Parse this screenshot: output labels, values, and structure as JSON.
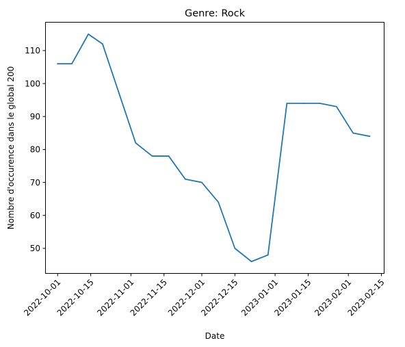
{
  "chart_data": {
    "type": "line",
    "title": "Genre:  Rock",
    "xlabel": "Date",
    "ylabel": "Nombre d'occurence dans le global 200",
    "grid": false,
    "legend": "none",
    "xlim": [
      "2022-09-26",
      "2023-02-16"
    ],
    "ylim": [
      42.5,
      118.5
    ],
    "x_ticks": [
      "2022-10-01",
      "2022-10-15",
      "2022-11-01",
      "2022-11-15",
      "2022-12-01",
      "2022-12-15",
      "2023-01-01",
      "2023-01-15",
      "2023-02-01",
      "2023-02-15"
    ],
    "y_ticks": [
      50,
      60,
      70,
      80,
      90,
      100,
      110
    ],
    "series": [
      {
        "color": "#1f77b4",
        "points": [
          {
            "x": "2022-10-01",
            "y": 106
          },
          {
            "x": "2022-10-07",
            "y": 106
          },
          {
            "x": "2022-10-14",
            "y": 115
          },
          {
            "x": "2022-10-20",
            "y": 112
          },
          {
            "x": "2022-10-27",
            "y": 97
          },
          {
            "x": "2022-11-03",
            "y": 82
          },
          {
            "x": "2022-11-10",
            "y": 78
          },
          {
            "x": "2022-11-17",
            "y": 78
          },
          {
            "x": "2022-11-24",
            "y": 71
          },
          {
            "x": "2022-12-01",
            "y": 70
          },
          {
            "x": "2022-12-08",
            "y": 64
          },
          {
            "x": "2022-12-15",
            "y": 50
          },
          {
            "x": "2022-12-22",
            "y": 46
          },
          {
            "x": "2022-12-29",
            "y": 48
          },
          {
            "x": "2023-01-06",
            "y": 94
          },
          {
            "x": "2023-01-13",
            "y": 94
          },
          {
            "x": "2023-01-20",
            "y": 94
          },
          {
            "x": "2023-01-27",
            "y": 93
          },
          {
            "x": "2023-02-03",
            "y": 85
          },
          {
            "x": "2023-02-10",
            "y": 84
          }
        ]
      }
    ]
  }
}
